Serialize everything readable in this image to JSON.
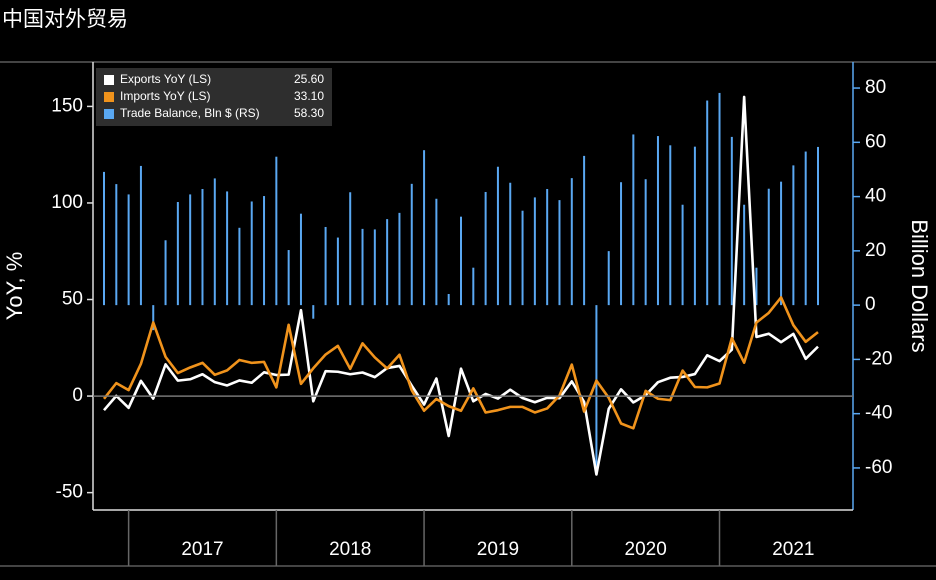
{
  "title": "中国对外贸易",
  "chart_data": {
    "type": "line",
    "ylabel": "YoY, %",
    "y2label": "Billion Dollars",
    "ylim": [
      -59,
      173
    ],
    "yticks": [
      -50,
      0,
      50,
      100,
      150
    ],
    "y2lim": [
      -75.5,
      89.6
    ],
    "y2ticks": [
      -60,
      -40,
      -20,
      0,
      20,
      40,
      60,
      80
    ],
    "legend": "upper left",
    "categories": [
      null,
      null,
      null,
      null,
      null,
      null,
      null,
      null,
      "2017",
      null,
      null,
      null,
      null,
      null,
      null,
      null,
      null,
      null,
      null,
      null,
      "2018",
      null,
      null,
      null,
      null,
      null,
      null,
      null,
      null,
      null,
      null,
      null,
      "2019",
      null,
      null,
      null,
      null,
      null,
      null,
      null,
      null,
      null,
      null,
      null,
      "2020",
      null,
      null,
      null,
      null,
      null,
      null,
      null,
      null,
      null,
      null,
      null,
      "2021",
      null,
      null
    ],
    "series": [
      {
        "name": "Exports YoY (LS)",
        "legend_value": "25.60",
        "type": "line",
        "color": "#ffffff",
        "values": [
          -7.3,
          0.1,
          -6.1,
          7.9,
          -1.3,
          16.4,
          8.0,
          8.7,
          11.3,
          7.2,
          5.5,
          8.1,
          6.9,
          12.3,
          10.9,
          11.1,
          44.5,
          -2.7,
          12.9,
          12.6,
          11.3,
          12.2,
          9.8,
          14.5,
          15.6,
          5.4,
          -4.4,
          9.1,
          -20.7,
          14.2,
          -2.7,
          1.1,
          -1.3,
          3.3,
          -1.0,
          -3.2,
          -0.9,
          -1.1,
          7.6,
          -3,
          -40.6,
          -6.6,
          3.5,
          -3.3,
          0.5,
          7.2,
          9.5,
          9.9,
          11.4,
          21.1,
          18.1,
          24,
          154.9,
          30.6,
          32.3,
          27.9,
          32.2,
          19.3,
          25.6
        ]
      },
      {
        "name": "Imports YoY (LS)",
        "legend_value": "33.10",
        "type": "line",
        "color": "#f0931c",
        "values": [
          -1.4,
          6.7,
          3.1,
          16.7,
          38.1,
          20.3,
          11.9,
          14.8,
          17.2,
          11.0,
          13.3,
          18.7,
          17.2,
          17.7,
          4.5,
          36.9,
          6.3,
          14.4,
          21.5,
          26.0,
          14.1,
          27.3,
          20.0,
          14.3,
          21.4,
          3.0,
          -7.6,
          -1.5,
          -5.2,
          -7.6,
          4.0,
          -8.5,
          -7.3,
          -5.6,
          -5.6,
          -8.5,
          -6.4,
          0.3,
          16.3,
          -8,
          8,
          -0.9,
          -14.2,
          -16.7,
          2.7,
          -1.4,
          -2.1,
          13.2,
          4.7,
          4.5,
          6.5,
          30,
          17.3,
          38.1,
          43.1,
          51.1,
          36.7,
          28.1,
          33.1
        ]
      },
      {
        "name": "Trade Balance, Bln $ (RS)",
        "legend_value": "58.30",
        "type": "bar",
        "axis": "y2",
        "color": "#5aa8f2",
        "values": [
          49.1,
          44.6,
          40.8,
          51.3,
          -9.2,
          23.9,
          38.0,
          40.8,
          42.8,
          46.7,
          41.9,
          28.5,
          38.2,
          40.2,
          54.7,
          20.3,
          33.7,
          -5.0,
          28.8,
          24.9,
          41.6,
          28.1,
          27.9,
          31.7,
          34.0,
          44.7,
          57.1,
          39.2,
          4.1,
          32.6,
          13.8,
          41.7,
          51.0,
          45.1,
          34.8,
          39.7,
          42.8,
          38.7,
          46.8,
          55,
          -61,
          19.9,
          45.3,
          62.9,
          46.4,
          62.3,
          58.9,
          37.0,
          58.4,
          75.4,
          78.2,
          62,
          37,
          13.8,
          42.9,
          45.5,
          51.5,
          56.6,
          58.3
        ]
      }
    ]
  }
}
